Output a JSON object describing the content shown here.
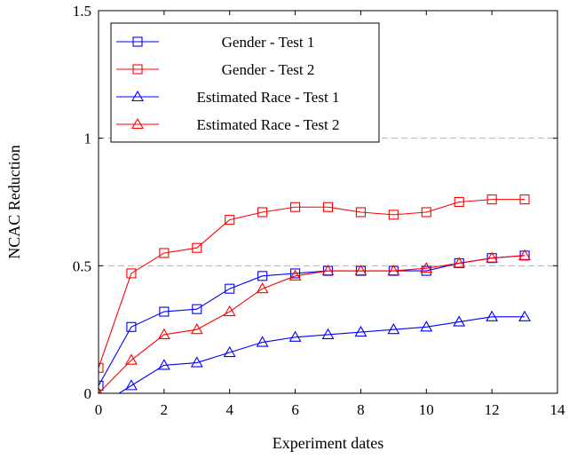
{
  "chart_data": {
    "type": "line",
    "xlabel": "Experiment dates",
    "ylabel": "NCAC Reduction",
    "xlim": [
      0,
      14
    ],
    "ylim": [
      0,
      1.5
    ],
    "x_ticks": [
      0,
      2,
      4,
      6,
      8,
      10,
      12,
      14
    ],
    "y_ticks": [
      0,
      0.5,
      1,
      1.5
    ],
    "x_tick_labels": [
      "0",
      "2",
      "4",
      "6",
      "8",
      "10",
      "12",
      "14"
    ],
    "y_tick_labels": [
      "0",
      "0.5",
      "1",
      "1.5"
    ],
    "grid": "horizontal dashed at 0.5 and 1",
    "legend_position": "top-left",
    "series": [
      {
        "name": "Gender - Test 1",
        "color": "#0000ff",
        "marker": "square",
        "x": [
          0,
          1,
          2,
          3,
          4,
          5,
          6,
          7,
          8,
          9,
          10,
          11,
          12,
          13
        ],
        "values": [
          0.03,
          0.26,
          0.32,
          0.33,
          0.41,
          0.46,
          0.47,
          0.48,
          0.48,
          0.48,
          0.48,
          0.51,
          0.53,
          0.54
        ]
      },
      {
        "name": "Gender - Test 2",
        "color": "#ff0000",
        "marker": "square",
        "x": [
          0,
          1,
          2,
          3,
          4,
          5,
          6,
          7,
          8,
          9,
          10,
          11,
          12,
          13
        ],
        "values": [
          0.1,
          0.47,
          0.55,
          0.57,
          0.68,
          0.71,
          0.73,
          0.73,
          0.71,
          0.7,
          0.71,
          0.75,
          0.76,
          0.76
        ]
      },
      {
        "name": "Estimated Race - Test 1",
        "color": "#0000ff",
        "marker": "triangle",
        "x": [
          0,
          1,
          2,
          3,
          4,
          5,
          6,
          7,
          8,
          9,
          10,
          11,
          12,
          13
        ],
        "values": [
          -0.05,
          0.03,
          0.11,
          0.12,
          0.16,
          0.2,
          0.22,
          0.23,
          0.24,
          0.25,
          0.26,
          0.28,
          0.3,
          0.3
        ]
      },
      {
        "name": "Estimated Race - Test 2",
        "color": "#ff0000",
        "marker": "triangle",
        "x": [
          0,
          1,
          2,
          3,
          4,
          5,
          6,
          7,
          8,
          9,
          10,
          11,
          12,
          13
        ],
        "values": [
          0.0,
          0.13,
          0.23,
          0.25,
          0.32,
          0.41,
          0.46,
          0.48,
          0.48,
          0.48,
          0.49,
          0.51,
          0.53,
          0.54
        ]
      }
    ]
  }
}
